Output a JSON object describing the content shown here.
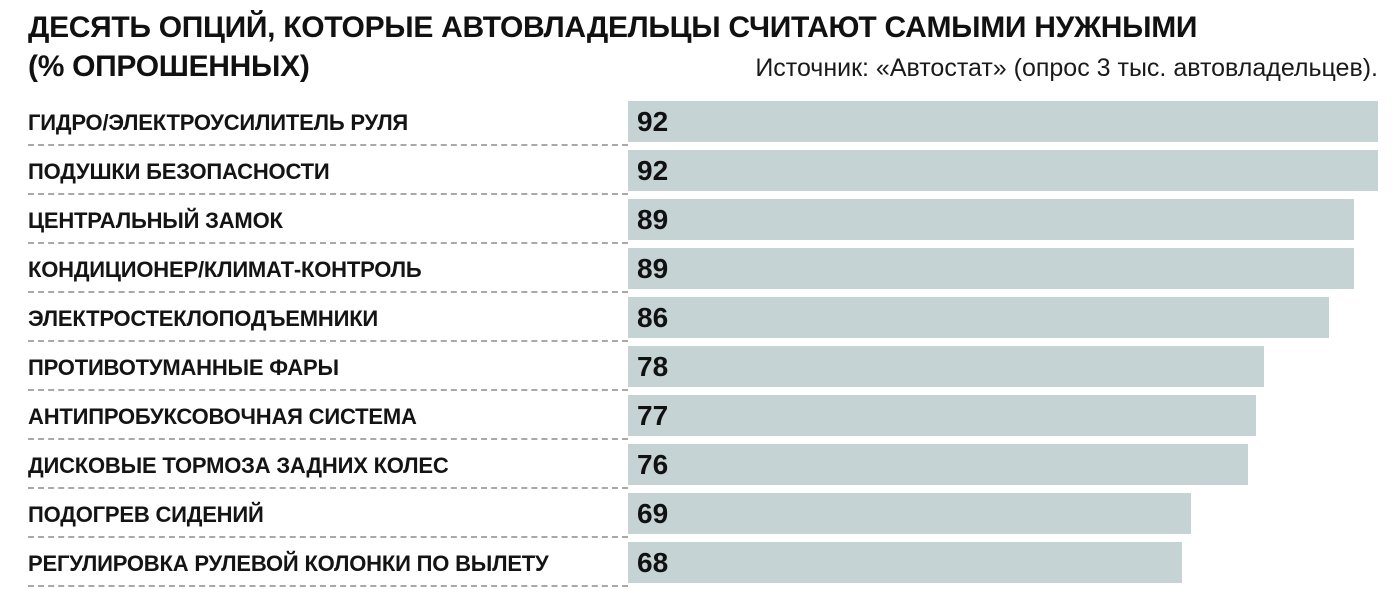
{
  "header": {
    "title_line1": "ДЕСЯТЬ ОПЦИЙ, КОТОРЫЕ АВТОВЛАДЕЛЬЦЫ СЧИТАЮТ САМЫМИ НУЖНЫМИ",
    "subtitle": "(% ОПРОШЕННЫХ)",
    "source": "Источник: «Автостат» (опрос 3 тыс. автовладельцев)."
  },
  "chart_data": {
    "type": "bar",
    "orientation": "horizontal",
    "title": "ДЕСЯТЬ ОПЦИЙ, КОТОРЫЕ АВТОВЛАДЕЛЬЦЫ СЧИТАЮТ САМЫМИ НУЖНЫМИ (% ОПРОШЕННЫХ)",
    "source": "Источник: «Автостат» (опрос 3 тыс. автовладельцев).",
    "categories": [
      "ГИДРО/ЭЛЕКТРОУСИЛИТЕЛЬ РУЛЯ",
      "ПОДУШКИ БЕЗОПАСНОСТИ",
      "ЦЕНТРАЛЬНЫЙ ЗАМОК",
      "КОНДИЦИОНЕР/КЛИМАТ-КОНТРОЛЬ",
      "ЭЛЕКТРОСТЕКЛОПОДЪЕМНИКИ",
      "ПРОТИВОТУМАННЫЕ ФАРЫ",
      "АНТИПРОБУКСОВОЧНАЯ СИСТЕМА",
      "ДИСКОВЫЕ ТОРМОЗА ЗАДНИХ КОЛЕС",
      "ПОДОГРЕВ СИДЕНИЙ",
      "РЕГУЛИРОВКА РУЛЕВОЙ КОЛОНКИ ПО ВЫЛЕТУ"
    ],
    "values": [
      92,
      92,
      89,
      89,
      86,
      78,
      77,
      76,
      69,
      68
    ],
    "xlim": [
      0,
      92
    ],
    "unit": "%",
    "bar_color": "#c5d3d5",
    "value_label_position": "inside-left",
    "grid": false,
    "legend": false
  }
}
